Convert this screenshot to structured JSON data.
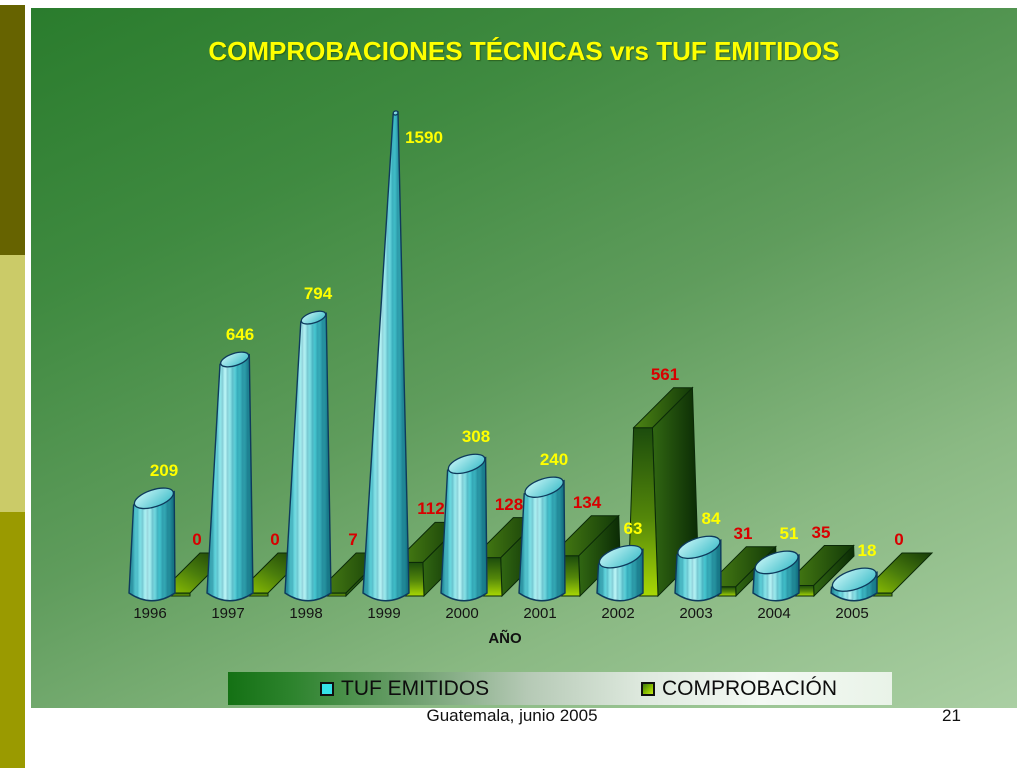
{
  "slide": {
    "title": "COMPROBACIONES TÉCNICAS vrs TUF EMITIDOS",
    "footer": {
      "date_text": "Guatemala, junio 2005",
      "page_number": "21"
    }
  },
  "chart_data": {
    "type": "bar",
    "variant": "3d-cone-pyramid",
    "title": "COMPROBACIONES TÉCNICAS vrs TUF EMITIDOS",
    "categories": [
      "1996",
      "1997",
      "1998",
      "1999",
      "2000",
      "2001",
      "2002",
      "2003",
      "2004",
      "2005"
    ],
    "series": [
      {
        "name": "TUF EMITIDOS",
        "shape": "cone",
        "color": "#35e2e8",
        "label_color": "#ffff00",
        "values": [
          209,
          646,
          794,
          1590,
          308,
          240,
          63,
          84,
          51,
          18
        ]
      },
      {
        "name": "COMPROBACIÓN",
        "shape": "pyramid",
        "color": "#8fc400",
        "label_color": "#d80000",
        "values": [
          0,
          0,
          7,
          112,
          128,
          134,
          561,
          31,
          35,
          0
        ]
      }
    ],
    "xlabel": "AÑO",
    "ylabel": "",
    "ylim": [
      0,
      1590
    ],
    "grid": false,
    "legend_position": "bottom"
  },
  "colors": {
    "title": "#ffff00",
    "slide_gradient_top": "#2a7c2d",
    "slide_gradient_bottom": "#aacfa3",
    "stripe_dark_olive": "#666300",
    "stripe_khaki": "#cbcb68",
    "stripe_olive": "#9a9a00",
    "category_label": "#141414",
    "footer_text": "#111111"
  }
}
